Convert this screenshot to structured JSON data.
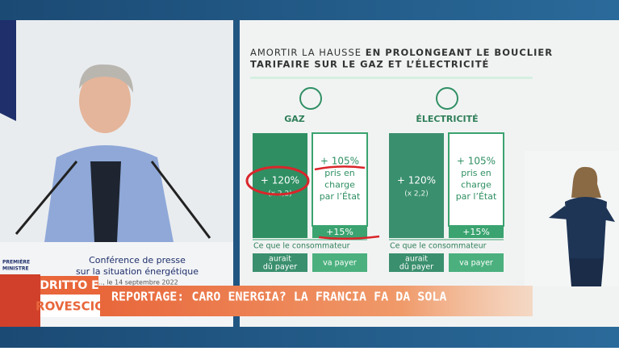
{
  "slide": {
    "title": {
      "line1_light": "AMORTIR LA HAUSSE",
      "line1_bold": "EN PROLONGEANT LE BOUCLIER",
      "line2": "TARIFAIRE SUR LE GAZ ET L’ÉLECTRICITÉ"
    },
    "panels": [
      {
        "title": "GAZ",
        "left": {
          "value": "+ 120%",
          "note": "(x 2,2)"
        },
        "right": {
          "value": "+ 105%",
          "lines": [
            "pris en",
            "charge",
            "par l’État"
          ],
          "bottom": "+15%"
        },
        "caption": "Ce que le consommateur",
        "buttons": [
          [
            "aurait",
            "dû payer"
          ],
          [
            "va payer"
          ]
        ]
      },
      {
        "title": "ÉLECTRICITÉ",
        "left": {
          "value": "+ 120%",
          "note": "(x 2,2)"
        },
        "right": {
          "value": "+ 105%",
          "lines": [
            "pris en",
            "charge",
            "par l’État"
          ],
          "bottom": "+15%"
        },
        "caption": "Ce que le consommateur",
        "buttons": [
          [
            "aurait",
            "dû payer"
          ],
          [
            "va payer"
          ]
        ]
      }
    ]
  },
  "podium": {
    "lines": [
      "Conférence de presse",
      "sur la situation énergétique",
      "…, le 14 septembre 2022"
    ],
    "office": [
      "PREMIÈRE",
      "MINISTRE"
    ]
  },
  "logo": [
    "DRITTO E",
    "ROVESCIO"
  ],
  "banner": "REPORTAGE: CARO ENERGIA? LA FRANCIA FA DA SOLA"
}
